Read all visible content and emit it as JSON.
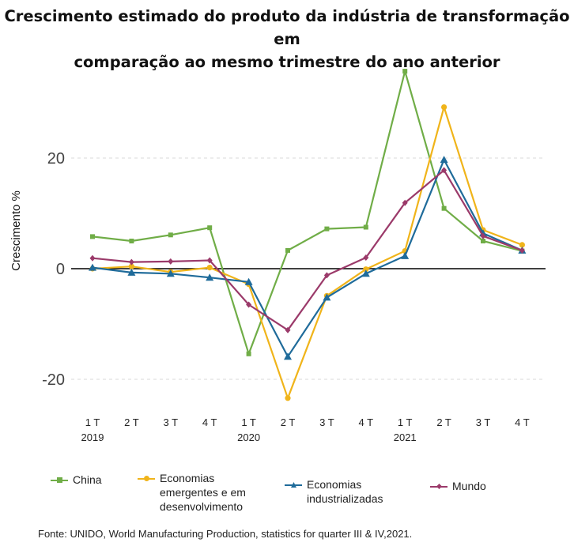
{
  "title_lines": [
    "Crescimento estimado do produto da indústria de transformação em",
    "comparação ao mesmo trimestre do ano anterior"
  ],
  "source": "Fonte: UNIDO, World Manufacturing Production, statistics for quarter III & IV,2021.",
  "chart_data": {
    "type": "line",
    "title": "Crescimento estimado do produto da indústria de transformação em comparação ao mesmo trimestre do ano anterior",
    "xlabel": "",
    "ylabel": "Crescimento %",
    "ylim": [
      -25,
      37
    ],
    "yticks": [
      -20,
      0,
      20
    ],
    "grid": "horizontal dashed",
    "legend_position": "bottom",
    "categories": [
      "1 T",
      "2 T",
      "3 T",
      "4 T",
      "1 T",
      "2 T",
      "3 T",
      "4 T",
      "1 T",
      "2 T",
      "3 T",
      "4 T"
    ],
    "year_labels": [
      {
        "index": 0,
        "label": "2019"
      },
      {
        "index": 4,
        "label": "2020"
      },
      {
        "index": 8,
        "label": "2021"
      }
    ],
    "series": [
      {
        "name": "China",
        "color": "#70ad47",
        "marker": "square",
        "values": [
          5.8,
          5.0,
          6.1,
          7.4,
          -15.4,
          3.3,
          7.2,
          7.5,
          35.7,
          10.9,
          5.0,
          3.2
        ]
      },
      {
        "name": "Economias emergentes e em desenvolvimento",
        "color": "#f0b41a",
        "marker": "circle",
        "values": [
          0.0,
          0.4,
          -0.6,
          0.2,
          -2.8,
          -23.4,
          -4.9,
          -0.1,
          3.2,
          29.2,
          7.0,
          4.3
        ]
      },
      {
        "name": "Economias industrializadas",
        "color": "#1f6b9a",
        "marker": "triangle",
        "values": [
          0.2,
          -0.7,
          -0.9,
          -1.6,
          -2.4,
          -15.9,
          -5.2,
          -0.9,
          2.3,
          19.7,
          6.4,
          3.3
        ]
      },
      {
        "name": "Mundo",
        "color": "#9b3a6a",
        "marker": "diamond",
        "values": [
          1.9,
          1.2,
          1.3,
          1.5,
          -6.5,
          -11.1,
          -1.2,
          2.0,
          11.9,
          17.8,
          5.9,
          3.3
        ]
      }
    ]
  }
}
